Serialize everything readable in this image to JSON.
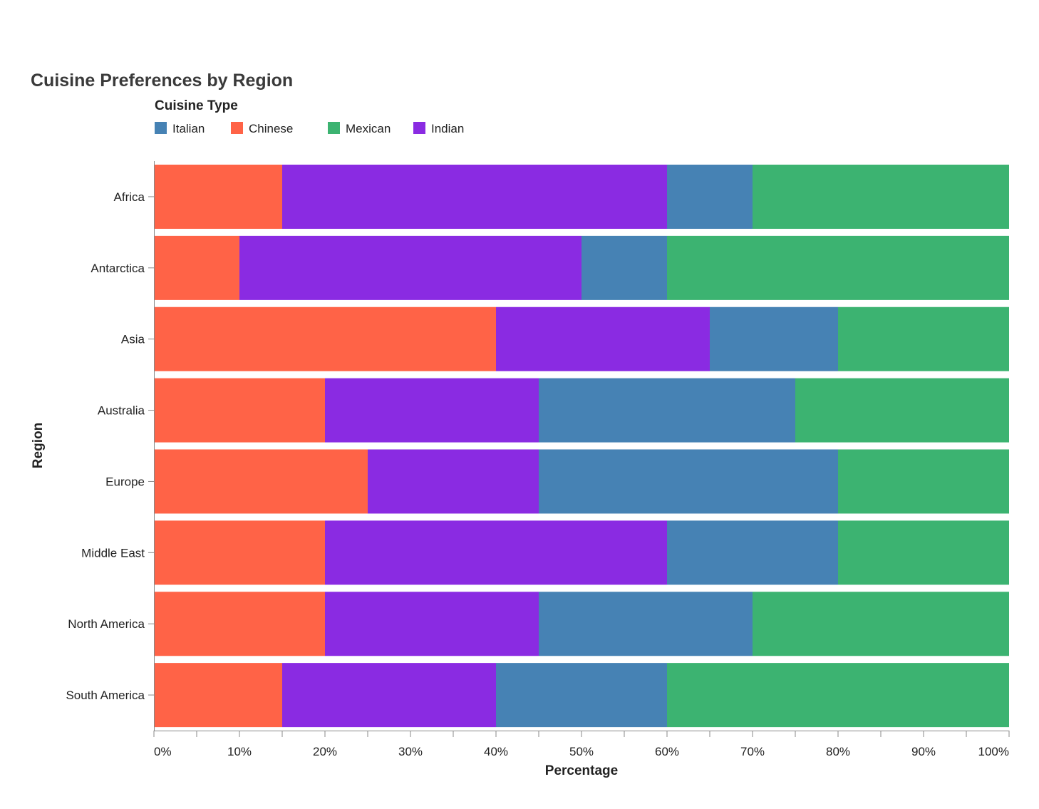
{
  "chart_data": {
    "type": "bar",
    "orientation": "horizontal",
    "stacked": "normalized",
    "title": "Cuisine Preferences by Region",
    "xlabel": "Percentage",
    "ylabel": "Region",
    "xlim": [
      0,
      100
    ],
    "x_ticks": [
      "0%",
      "10%",
      "20%",
      "30%",
      "40%",
      "50%",
      "60%",
      "70%",
      "80%",
      "90%",
      "100%"
    ],
    "grid": false,
    "legend": {
      "title": "Cuisine Type",
      "placement": "top-left",
      "entries": [
        {
          "name": "Italian",
          "color": "#4682b4"
        },
        {
          "name": "Chinese",
          "color": "#ff6347"
        },
        {
          "name": "Mexican",
          "color": "#3cb371"
        },
        {
          "name": "Indian",
          "color": "#8a2be2"
        }
      ]
    },
    "stack_order": [
      "Chinese",
      "Indian",
      "Italian",
      "Mexican"
    ],
    "categories": [
      "Africa",
      "Antarctica",
      "Asia",
      "Australia",
      "Europe",
      "Middle East",
      "North America",
      "South America"
    ],
    "series": [
      {
        "name": "Chinese",
        "color": "#ff6347",
        "values": [
          15,
          10,
          40,
          20,
          25,
          20,
          20,
          15
        ]
      },
      {
        "name": "Indian",
        "color": "#8a2be2",
        "values": [
          45,
          40,
          25,
          25,
          20,
          40,
          25,
          25
        ]
      },
      {
        "name": "Italian",
        "color": "#4682b4",
        "values": [
          10,
          10,
          15,
          30,
          35,
          20,
          25,
          20
        ]
      },
      {
        "name": "Mexican",
        "color": "#3cb371",
        "values": [
          30,
          40,
          20,
          25,
          20,
          20,
          30,
          40
        ]
      }
    ]
  }
}
